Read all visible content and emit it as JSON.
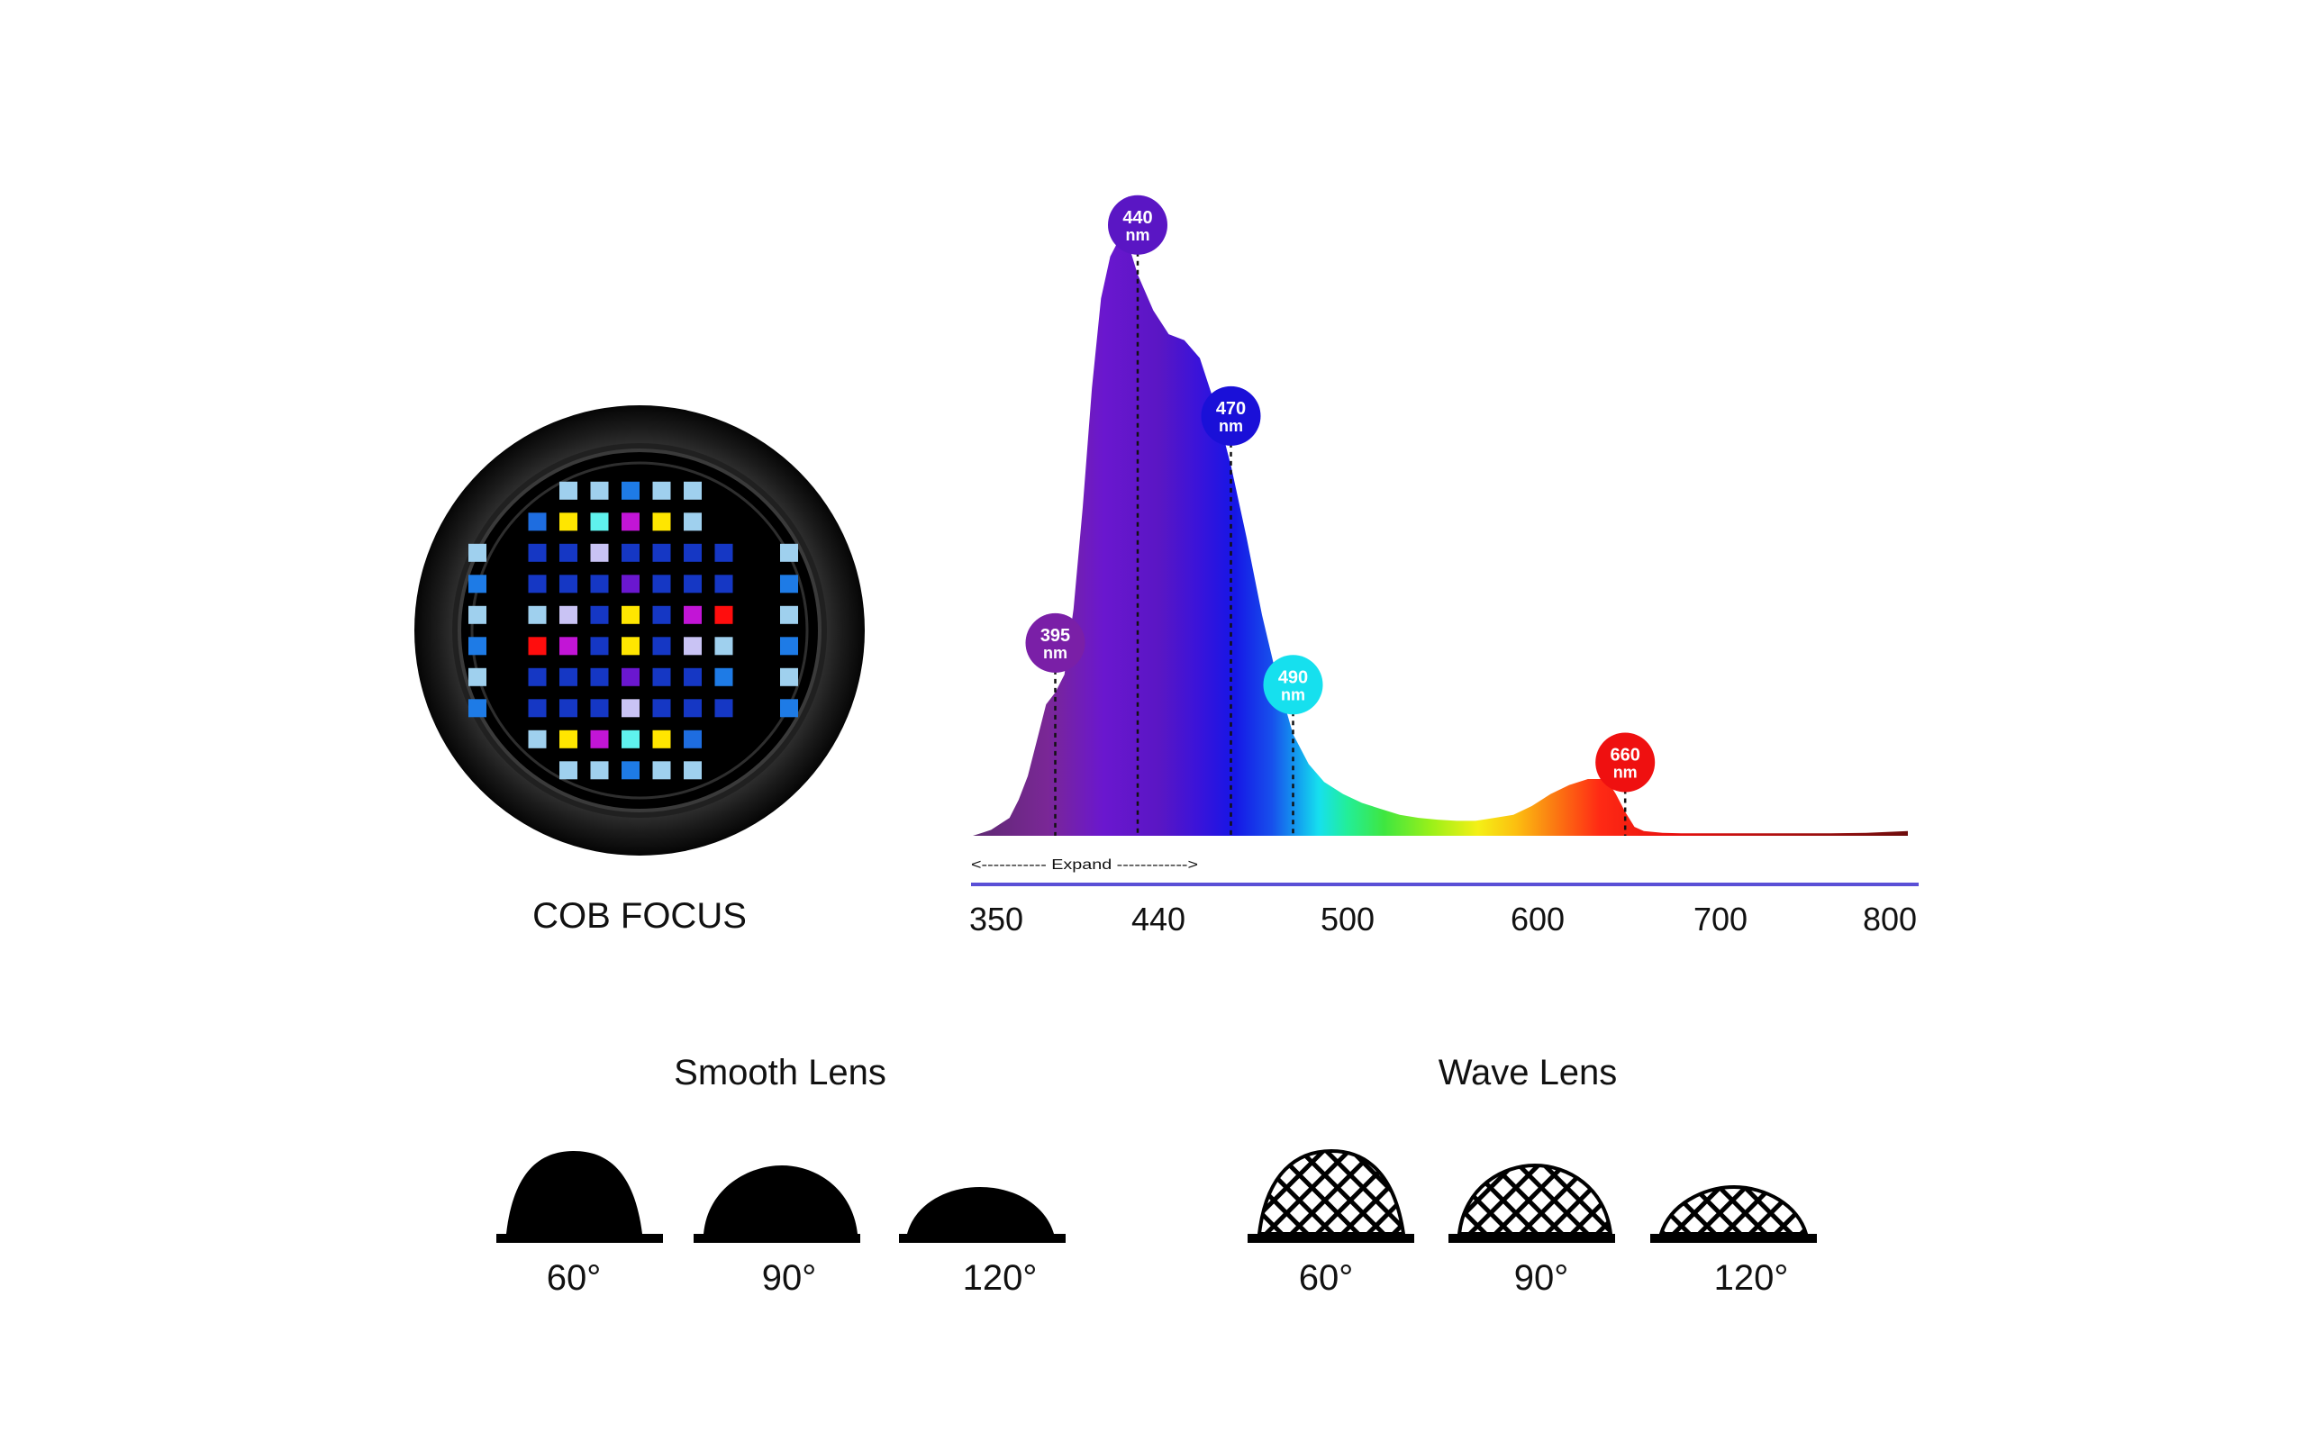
{
  "cob": {
    "label": "COB FOCUS",
    "grid": [
      [
        null,
        null,
        "#9fd0ee",
        "#9fd0ee",
        "#1e7be6",
        "#9fd0ee",
        "#9fd0ee",
        null,
        null
      ],
      [
        null,
        "#1e6de0",
        "#ffe600",
        "#5ff2ee",
        "#c215d6",
        "#ffe600",
        "#9fd0ee",
        null,
        null
      ],
      [
        null,
        "#1537c4",
        "#1537c4",
        "#c9c3f4",
        "#1537c4",
        "#1537c4",
        "#1537c4",
        "#1537c4",
        null
      ],
      [
        null,
        "#1537c4",
        "#1537c4",
        "#1537c4",
        "#6a17cf",
        "#1537c4",
        "#1537c4",
        "#1537c4",
        null
      ],
      [
        null,
        "#9fd0ee",
        "#c9c3f4",
        "#1537c4",
        "#ffe600",
        "#1537c4",
        "#c215d6",
        "#ff0d0d",
        null
      ],
      [
        null,
        "#ff0d0d",
        "#c215d6",
        "#1537c4",
        "#ffe600",
        "#1537c4",
        "#c9c3f4",
        "#9fd0ee",
        null
      ],
      [
        null,
        "#1537c4",
        "#1537c4",
        "#1537c4",
        "#6a17cf",
        "#1537c4",
        "#1537c4",
        "#1e7be6",
        null
      ],
      [
        null,
        "#1537c4",
        "#1537c4",
        "#1537c4",
        "#c9c3f4",
        "#1537c4",
        "#1537c4",
        "#1537c4",
        null
      ],
      [
        null,
        "#9fd0ee",
        "#ffe600",
        "#c215d6",
        "#5ff2ee",
        "#ffe600",
        "#1e6de0",
        null,
        null
      ],
      [
        null,
        null,
        "#9fd0ee",
        "#9fd0ee",
        "#1e7be6",
        "#9fd0ee",
        "#9fd0ee",
        null,
        null
      ]
    ],
    "side_left": [
      "#9fd0ee",
      "#1e7be6",
      "#9fd0ee",
      "#1e7be6",
      "#9fd0ee",
      "#1e7be6"
    ],
    "side_right": [
      "#9fd0ee",
      "#1e7be6",
      "#9fd0ee",
      "#1e7be6",
      "#9fd0ee",
      "#1e7be6"
    ]
  },
  "chart_data": {
    "type": "area",
    "xlabel": "",
    "ylabel": "",
    "x_ticks": [
      "350",
      "440",
      "500",
      "600",
      "700",
      "800"
    ],
    "expand_label": "<----------- Expand ------------>",
    "series": [
      {
        "x": [
          350,
          355,
          360,
          365,
          370,
          375,
          380,
          385,
          390,
          395,
          400,
          405,
          410,
          415,
          420,
          425,
          430,
          435,
          440,
          445,
          450,
          455,
          460,
          465,
          470,
          475,
          480,
          485,
          490,
          495,
          500,
          510,
          520,
          530,
          540,
          550,
          560,
          570,
          580,
          590,
          600,
          610,
          620,
          630,
          640,
          650,
          655,
          660,
          665,
          670,
          680,
          690,
          700,
          720,
          740,
          760,
          780,
          800
        ],
        "values": [
          0.0,
          0.005,
          0.01,
          0.02,
          0.03,
          0.06,
          0.1,
          0.16,
          0.22,
          0.24,
          0.27,
          0.38,
          0.55,
          0.75,
          0.9,
          0.97,
          1.0,
          0.99,
          0.94,
          0.88,
          0.84,
          0.83,
          0.8,
          0.72,
          0.62,
          0.5,
          0.37,
          0.26,
          0.17,
          0.12,
          0.09,
          0.07,
          0.055,
          0.045,
          0.035,
          0.03,
          0.027,
          0.025,
          0.025,
          0.03,
          0.035,
          0.05,
          0.07,
          0.085,
          0.095,
          0.095,
          0.07,
          0.04,
          0.015,
          0.008,
          0.005,
          0.004,
          0.004,
          0.004,
          0.004,
          0.004,
          0.005,
          0.008
        ]
      }
    ],
    "peaks": [
      {
        "wl": 395,
        "label": "395",
        "unit": "nm",
        "color": "#7a1fa7"
      },
      {
        "wl": 440,
        "label": "440",
        "unit": "nm",
        "color": "#5a16c4"
      },
      {
        "wl": 470,
        "label": "470",
        "unit": "nm",
        "color": "#1a10d8"
      },
      {
        "wl": 490,
        "label": "490",
        "unit": "nm",
        "color": "#16e0ee"
      },
      {
        "wl": 660,
        "label": "660",
        "unit": "nm",
        "color": "#ef1010"
      }
    ],
    "axis_color": "#5a4fd6"
  },
  "lenses": {
    "smooth_title": "Smooth Lens",
    "wave_title": "Wave Lens",
    "angles": [
      "60°",
      "90°",
      "120°"
    ]
  }
}
